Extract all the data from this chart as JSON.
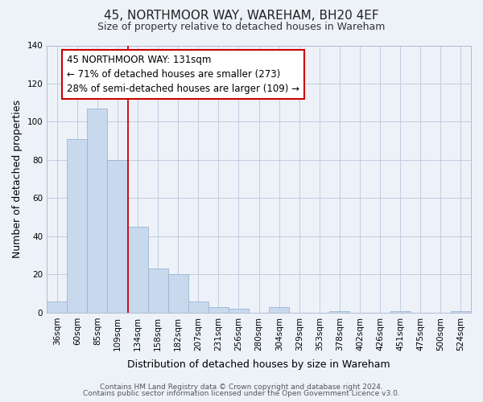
{
  "title": "45, NORTHMOOR WAY, WAREHAM, BH20 4EF",
  "subtitle": "Size of property relative to detached houses in Wareham",
  "xlabel": "Distribution of detached houses by size in Wareham",
  "ylabel": "Number of detached properties",
  "bar_labels": [
    "36sqm",
    "60sqm",
    "85sqm",
    "109sqm",
    "134sqm",
    "158sqm",
    "182sqm",
    "207sqm",
    "231sqm",
    "256sqm",
    "280sqm",
    "304sqm",
    "329sqm",
    "353sqm",
    "378sqm",
    "402sqm",
    "426sqm",
    "451sqm",
    "475sqm",
    "500sqm",
    "524sqm"
  ],
  "bar_heights": [
    6,
    91,
    107,
    80,
    45,
    23,
    20,
    6,
    3,
    2,
    0,
    3,
    0,
    0,
    1,
    0,
    0,
    1,
    0,
    0,
    1
  ],
  "bar_color": "#c8d9ee",
  "bar_edge_color": "#9ab4d4",
  "vline_color": "#cc0000",
  "vline_x_index": 3.5,
  "annotation_text": "45 NORTHMOOR WAY: 131sqm\n← 71% of detached houses are smaller (273)\n28% of semi-detached houses are larger (109) →",
  "annotation_box_facecolor": "#ffffff",
  "annotation_box_edgecolor": "#cc0000",
  "bg_color": "#edf2f9",
  "plot_bg_color": "#edf2f9",
  "ylim": [
    0,
    140
  ],
  "yticks": [
    0,
    20,
    40,
    60,
    80,
    100,
    120,
    140
  ],
  "title_fontsize": 11,
  "subtitle_fontsize": 9,
  "axis_label_fontsize": 9,
  "tick_fontsize": 7.5,
  "annotation_fontsize": 8.5,
  "footer_fontsize": 6.5,
  "footer_line1": "Contains HM Land Registry data © Crown copyright and database right 2024.",
  "footer_line2": "Contains public sector information licensed under the Open Government Licence v3.0."
}
